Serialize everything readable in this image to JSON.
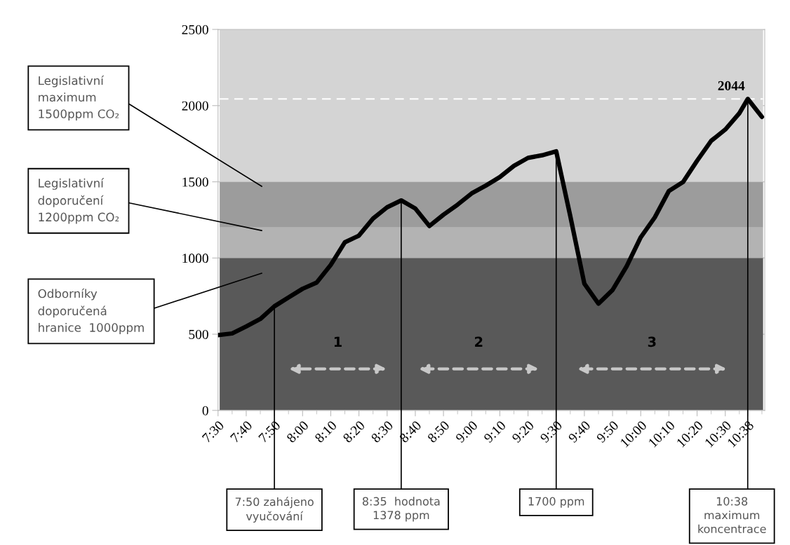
{
  "chart_data": {
    "type": "line",
    "x": [
      7.5,
      7.5833,
      7.6667,
      7.75,
      7.8333,
      7.9167,
      8.0,
      8.0833,
      8.1667,
      8.25,
      8.3333,
      8.4167,
      8.5,
      8.5833,
      8.6667,
      8.75,
      8.8333,
      8.9167,
      9.0,
      9.0833,
      9.1667,
      9.25,
      9.3333,
      9.4167,
      9.5,
      9.5833,
      9.6667,
      9.75,
      9.8333,
      9.9167,
      10.0,
      10.0833,
      10.1667,
      10.25,
      10.3333,
      10.4167,
      10.5,
      10.5833,
      10.6333,
      10.7167
    ],
    "series": [
      {
        "color": "#000000",
        "values": [
          494,
          505,
          551,
          600,
          683,
          741,
          798,
          839,
          955,
          1103,
          1147,
          1259,
          1333,
          1378,
          1325,
          1210,
          1284,
          1350,
          1424,
          1475,
          1531,
          1605,
          1657,
          1674,
          1700,
          1275,
          831,
          700,
          790,
          946,
          1136,
          1267,
          1440,
          1498,
          1638,
          1769,
          1843,
          1950,
          2044,
          1926
        ],
        "value_labels": [
          null,
          null,
          null,
          null,
          null,
          null,
          null,
          null,
          null,
          null,
          null,
          null,
          null,
          null,
          null,
          null,
          null,
          null,
          null,
          null,
          null,
          null,
          null,
          null,
          null,
          null,
          null,
          null,
          null,
          null,
          null,
          null,
          null,
          null,
          null,
          null,
          null,
          null,
          "2044",
          null
        ]
      }
    ],
    "xlim": [
      7.5,
      10.7333
    ],
    "xticks": [
      {
        "value": 7.5,
        "label": "7:30"
      },
      {
        "value": 7.6667,
        "label": "7:40"
      },
      {
        "value": 7.8333,
        "label": "7:50"
      },
      {
        "value": 8.0,
        "label": "8:00"
      },
      {
        "value": 8.1667,
        "label": "8:10"
      },
      {
        "value": 8.3333,
        "label": "8:20"
      },
      {
        "value": 8.5,
        "label": "8:30"
      },
      {
        "value": 8.6667,
        "label": "8:40"
      },
      {
        "value": 8.8333,
        "label": "8:50"
      },
      {
        "value": 9.0,
        "label": "9:00"
      },
      {
        "value": 9.1667,
        "label": "9:10"
      },
      {
        "value": 9.3333,
        "label": "9:20"
      },
      {
        "value": 9.5,
        "label": "9:30"
      },
      {
        "value": 9.6667,
        "label": "9:40"
      },
      {
        "value": 9.8333,
        "label": "9:50"
      },
      {
        "value": 10.0,
        "label": "10:00"
      },
      {
        "value": 10.1667,
        "label": "10:10"
      },
      {
        "value": 10.3333,
        "label": "10:20"
      },
      {
        "value": 10.5,
        "label": "10:30"
      },
      {
        "value": 10.6333,
        "label": "10:38"
      }
    ],
    "ylim": [
      0,
      2500
    ],
    "yticks": [
      0,
      500,
      1000,
      1500,
      2000,
      2500
    ],
    "grid": "y",
    "marker": "none",
    "line_style": "solid",
    "bands": [
      {
        "axis": "y",
        "from": 0,
        "to": 1000,
        "color": "#595959",
        "label": "Odborníky\ndoporučená\nhranice  1000ppm"
      },
      {
        "axis": "y",
        "from": 1000,
        "to": 1200,
        "color": "#b3b3b3",
        "label": "Legislativní\ndoporučení\n1200ppm CO₂"
      },
      {
        "axis": "y",
        "from": 1200,
        "to": 1500,
        "color": "#9c9c9c",
        "label": "Legislativní\nmaximum\n1500ppm CO₂"
      },
      {
        "axis": "y",
        "from": 1500,
        "to": 2500,
        "color": "#d4d4d4"
      }
    ],
    "ref_lines": [
      {
        "axis": "y",
        "value": 2044,
        "color": "#ffffff",
        "line_style": "dashed"
      }
    ],
    "annotations": [
      {
        "text": "7:50 zahájeno\nvyučování",
        "x": 7.8333,
        "y": 683
      },
      {
        "text": "8:35  hodnota\n1378 ppm",
        "x": 8.5833,
        "y": 1378
      },
      {
        "text": "1700 ppm",
        "x": 9.5,
        "y": 1700
      },
      {
        "text": "10:38\nmaximum\nkoncentrace",
        "x": 10.6333,
        "y": 2044
      },
      "1",
      "2",
      "3"
    ]
  }
}
